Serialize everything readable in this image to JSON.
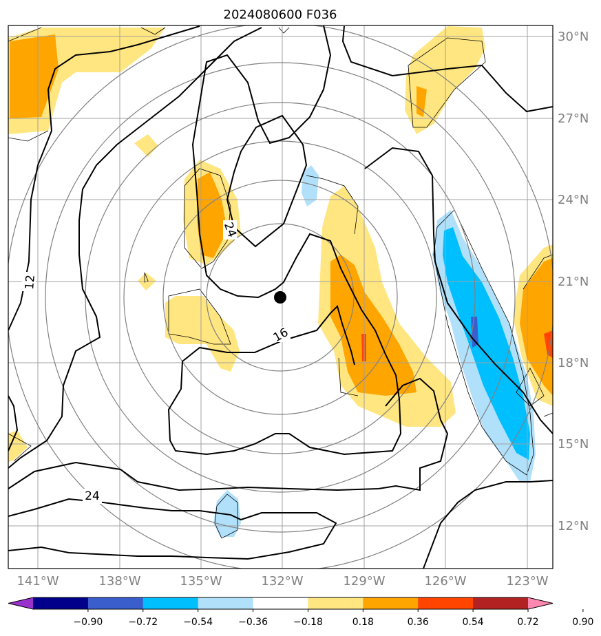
{
  "title": "2024080600 F036",
  "lat_labels": [
    "30°N",
    "27°N",
    "24°N",
    "21°N",
    "18°N",
    "15°N",
    "12°N"
  ],
  "lon_labels": [
    "141°W",
    "138°W",
    "135°W",
    "132°W",
    "129°W",
    "126°W",
    "123°W"
  ],
  "colorbar": {
    "ticks": [
      "−0.90",
      "−0.72",
      "−0.54",
      "−0.36",
      "−0.18",
      "0.18",
      "0.36",
      "0.54",
      "0.72",
      "0.90"
    ],
    "colors": [
      "#9932cc",
      "#00008b",
      "#3a5fcd",
      "#00bfff",
      "#b0e0fa",
      "#ffffff",
      "#ffe680",
      "#ffa500",
      "#ff4500",
      "#b22222",
      "#ff88b0"
    ]
  },
  "contour_labels": [
    "12",
    "16",
    "24",
    "24"
  ],
  "center_marker": "storm-center"
}
